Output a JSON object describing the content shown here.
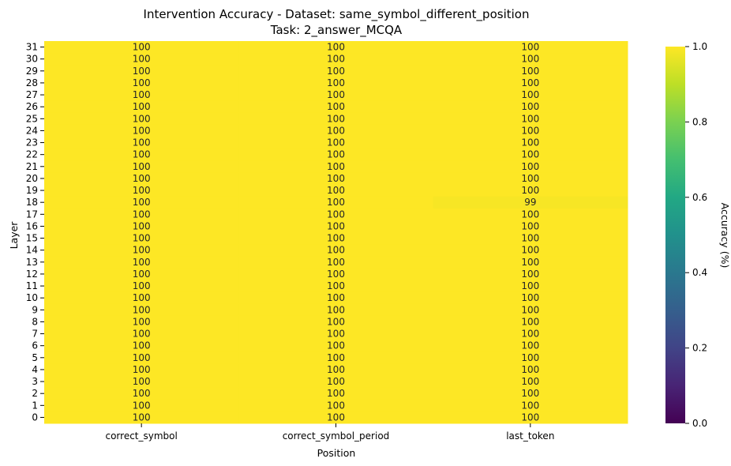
{
  "chart_data": {
    "type": "heatmap",
    "title": "Intervention Accuracy - Dataset: same_symbol_different_position",
    "subtitle": "Task: 2_answer_MCQA",
    "xlabel": "Position",
    "ylabel": "Layer",
    "x_categories": [
      "correct_symbol",
      "correct_symbol_period",
      "last_token"
    ],
    "y_categories": [
      "31",
      "30",
      "29",
      "28",
      "27",
      "26",
      "25",
      "24",
      "23",
      "22",
      "21",
      "20",
      "19",
      "18",
      "17",
      "16",
      "15",
      "14",
      "13",
      "12",
      "11",
      "10",
      "9",
      "8",
      "7",
      "6",
      "5",
      "4",
      "3",
      "2",
      "1",
      "0"
    ],
    "values": [
      [
        100,
        100,
        100
      ],
      [
        100,
        100,
        100
      ],
      [
        100,
        100,
        100
      ],
      [
        100,
        100,
        100
      ],
      [
        100,
        100,
        100
      ],
      [
        100,
        100,
        100
      ],
      [
        100,
        100,
        100
      ],
      [
        100,
        100,
        100
      ],
      [
        100,
        100,
        100
      ],
      [
        100,
        100,
        100
      ],
      [
        100,
        100,
        100
      ],
      [
        100,
        100,
        100
      ],
      [
        100,
        100,
        100
      ],
      [
        100,
        100,
        99
      ],
      [
        100,
        100,
        100
      ],
      [
        100,
        100,
        100
      ],
      [
        100,
        100,
        100
      ],
      [
        100,
        100,
        100
      ],
      [
        100,
        100,
        100
      ],
      [
        100,
        100,
        100
      ],
      [
        100,
        100,
        100
      ],
      [
        100,
        100,
        100
      ],
      [
        100,
        100,
        100
      ],
      [
        100,
        100,
        100
      ],
      [
        100,
        100,
        100
      ],
      [
        100,
        100,
        100
      ],
      [
        100,
        100,
        100
      ],
      [
        100,
        100,
        100
      ],
      [
        100,
        100,
        100
      ],
      [
        100,
        100,
        100
      ],
      [
        100,
        100,
        100
      ],
      [
        100,
        100,
        100
      ]
    ],
    "colorbar": {
      "label": "Accuracy (%)",
      "range": [
        0,
        1.0
      ],
      "ticks": [
        "0.0",
        "0.2",
        "0.4",
        "0.6",
        "0.8",
        "1.0"
      ],
      "colormap": "viridis"
    }
  }
}
